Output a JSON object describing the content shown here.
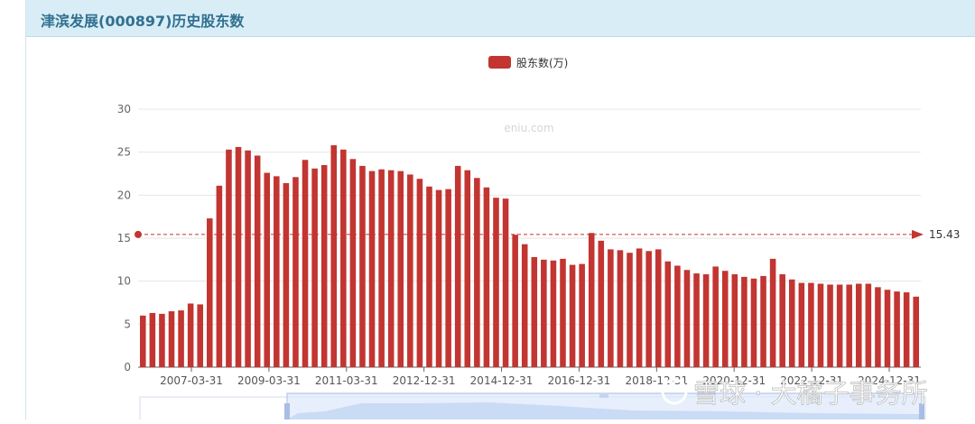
{
  "panel": {
    "title": "津滨发展(000897)历史股东数"
  },
  "watermark": {
    "site": "eniu.com",
    "overlay": "雪球 · 大橘子事务所"
  },
  "colors": {
    "bar": "#c23531",
    "header_bg": "#d9edf7",
    "title": "#31708f",
    "grid": "#e6e6e6",
    "slider_fill": "#dde8fb"
  },
  "chart_data": {
    "type": "bar",
    "title": "",
    "xlabel": "",
    "ylabel": "",
    "ylim": [
      0,
      30
    ],
    "yticks": [
      0,
      5,
      10,
      15,
      20,
      25,
      30
    ],
    "grid": true,
    "legend_position": "top-center",
    "x_tick_labels": [
      "2007-03-31",
      "2009-03-31",
      "2011-03-31",
      "2012-12-31",
      "2014-12-31",
      "2016-12-31",
      "2018-12-31",
      "2020-12-31",
      "2022-12-31",
      "2024-12-31"
    ],
    "series": [
      {
        "name": "股东数(万)",
        "values": [
          6.0,
          6.3,
          6.2,
          6.5,
          6.6,
          7.4,
          7.3,
          17.3,
          21.1,
          25.3,
          25.6,
          25.2,
          24.6,
          22.6,
          22.2,
          21.4,
          22.1,
          24.1,
          23.1,
          23.5,
          25.8,
          25.3,
          24.2,
          23.4,
          22.8,
          23.0,
          22.9,
          22.8,
          22.4,
          21.9,
          21.0,
          20.6,
          20.7,
          23.4,
          22.9,
          22.0,
          20.9,
          19.7,
          19.6,
          15.4,
          14.3,
          12.8,
          12.5,
          12.4,
          12.6,
          11.9,
          12.0,
          15.6,
          14.7,
          13.7,
          13.6,
          13.3,
          13.8,
          13.5,
          13.7,
          12.3,
          11.8,
          11.3,
          10.9,
          10.8,
          11.7,
          11.2,
          10.8,
          10.5,
          10.3,
          10.6,
          12.6,
          10.8,
          10.2,
          9.8,
          9.8,
          9.7,
          9.6,
          9.6,
          9.6,
          9.7,
          9.7,
          9.3,
          9.0,
          8.8,
          8.7,
          8.2
        ]
      }
    ],
    "markline": {
      "type": "average",
      "value": 15.43,
      "label": "15.43"
    }
  }
}
